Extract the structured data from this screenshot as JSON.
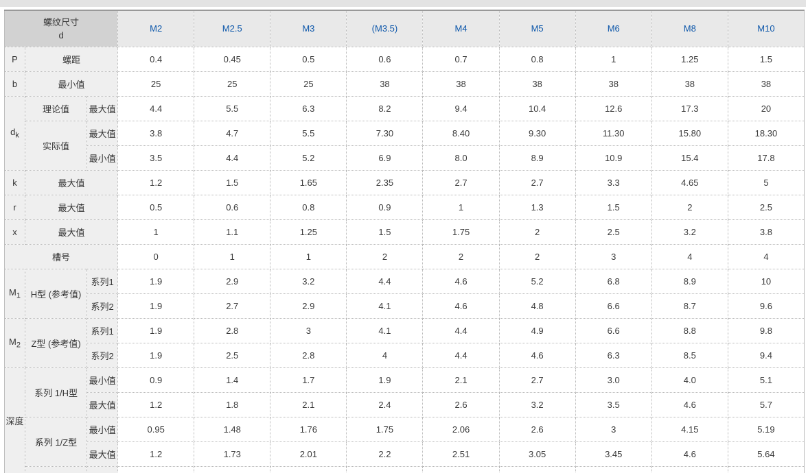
{
  "colors": {
    "accent_blue": "#0d57aa",
    "header_left_bg": "#d2d2d2",
    "header_bg": "#e9e9e9",
    "label_bg": "#efefef",
    "top_border": "#999999",
    "dotted_border": "#b8b8b8",
    "text": "#333333"
  },
  "table": {
    "corner": {
      "line1": "螺纹尺寸",
      "line2": "d"
    },
    "columns": [
      "M2",
      "M2.5",
      "M3",
      "(M3.5)",
      "M4",
      "M5",
      "M6",
      "M8",
      "M10"
    ],
    "rows": {
      "p": {
        "key": "P",
        "label": "螺距",
        "values": [
          "0.4",
          "0.45",
          "0.5",
          "0.6",
          "0.7",
          "0.8",
          "1",
          "1.25",
          "1.5"
        ]
      },
      "b": {
        "key": "b",
        "label": "最小值",
        "values": [
          "25",
          "25",
          "25",
          "38",
          "38",
          "38",
          "38",
          "38",
          "38"
        ]
      },
      "dk": {
        "key_base": "d",
        "key_sub": "k"
      },
      "dk_theory_max": {
        "group_label": "理论值",
        "label": "最大值",
        "values": [
          "4.4",
          "5.5",
          "6.3",
          "8.2",
          "9.4",
          "10.4",
          "12.6",
          "17.3",
          "20"
        ]
      },
      "dk_actual_max": {
        "group_label": "实际值",
        "label": "最大值",
        "values": [
          "3.8",
          "4.7",
          "5.5",
          "7.30",
          "8.40",
          "9.30",
          "11.30",
          "15.80",
          "18.30"
        ]
      },
      "dk_actual_min": {
        "label": "最小值",
        "values": [
          "3.5",
          "4.4",
          "5.2",
          "6.9",
          "8.0",
          "8.9",
          "10.9",
          "15.4",
          "17.8"
        ]
      },
      "k": {
        "key": "k",
        "label": "最大值",
        "values": [
          "1.2",
          "1.5",
          "1.65",
          "2.35",
          "2.7",
          "2.7",
          "3.3",
          "4.65",
          "5"
        ]
      },
      "r": {
        "key": "r",
        "label": "最大值",
        "values": [
          "0.5",
          "0.6",
          "0.8",
          "0.9",
          "1",
          "1.3",
          "1.5",
          "2",
          "2.5"
        ]
      },
      "x": {
        "key": "x",
        "label": "最大值",
        "values": [
          "1",
          "1.1",
          "1.25",
          "1.5",
          "1.75",
          "2",
          "2.5",
          "3.2",
          "3.8"
        ]
      },
      "slot": {
        "label": "槽号",
        "values": [
          "0",
          "1",
          "1",
          "2",
          "2",
          "2",
          "3",
          "4",
          "4"
        ]
      },
      "m1": {
        "key_base": "M",
        "key_sub": "1",
        "type_label": "H型 (参考值)"
      },
      "m1_s1": {
        "label": "系列1",
        "values": [
          "1.9",
          "2.9",
          "3.2",
          "4.4",
          "4.6",
          "5.2",
          "6.8",
          "8.9",
          "10"
        ]
      },
      "m1_s2": {
        "label": "系列2",
        "values": [
          "1.9",
          "2.7",
          "2.9",
          "4.1",
          "4.6",
          "4.8",
          "6.6",
          "8.7",
          "9.6"
        ]
      },
      "m2": {
        "key_base": "M",
        "key_sub": "2",
        "type_label": "Z型 (参考值)"
      },
      "m2_s1": {
        "label": "系列1",
        "values": [
          "1.9",
          "2.8",
          "3",
          "4.1",
          "4.4",
          "4.9",
          "6.6",
          "8.8",
          "9.8"
        ]
      },
      "m2_s2": {
        "label": "系列2",
        "values": [
          "1.9",
          "2.5",
          "2.8",
          "4",
          "4.4",
          "4.6",
          "6.3",
          "8.5",
          "9.4"
        ]
      },
      "depth": {
        "key": "深度",
        "h_label": "系列 1/H型",
        "z_label": "系列 1/Z型"
      },
      "depth_h_min": {
        "label": "最小值",
        "values": [
          "0.9",
          "1.4",
          "1.7",
          "1.9",
          "2.1",
          "2.7",
          "3.0",
          "4.0",
          "5.1"
        ]
      },
      "depth_h_max": {
        "label": "最大值",
        "values": [
          "1.2",
          "1.8",
          "2.1",
          "2.4",
          "2.6",
          "3.2",
          "3.5",
          "4.6",
          "5.7"
        ]
      },
      "depth_z_min": {
        "label": "最小值",
        "values": [
          "0.95",
          "1.48",
          "1.76",
          "1.75",
          "2.06",
          "2.6",
          "3",
          "4.15",
          "5.19"
        ]
      },
      "depth_z_max": {
        "label": "最大值",
        "values": [
          "1.2",
          "1.73",
          "2.01",
          "2.2",
          "2.51",
          "3.05",
          "3.45",
          "4.6",
          "5.64"
        ]
      }
    }
  }
}
